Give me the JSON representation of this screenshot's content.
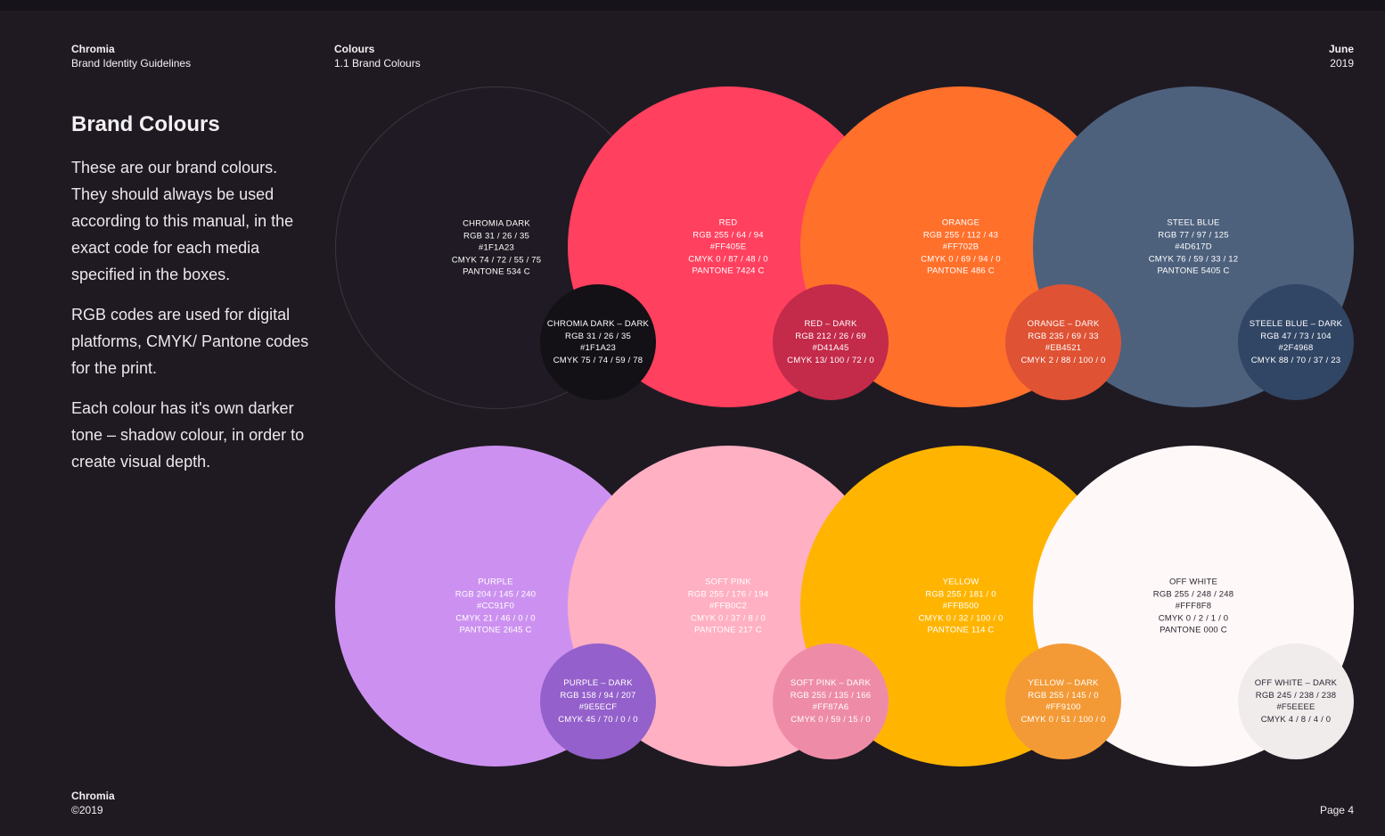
{
  "header": {
    "brand": "Chromia",
    "subtitle": "Brand Identity Guidelines",
    "section": "Colours",
    "subsection": "1.1 Brand Colours",
    "month": "June",
    "year": "2019"
  },
  "title": "Brand Colours",
  "intro": [
    "These are our brand colours. They should always be used according to this manual, in the exact code for each media specified in the boxes.",
    "RGB codes are used for digital platforms, CMYK/ Pantone codes for the print.",
    "Each colour has it's own darker tone – shadow colour, in order to create visual depth."
  ],
  "colors": [
    {
      "name": "Chromia Dark",
      "rgb": "RGB 31 / 26 / 35",
      "hex": "#1F1A23",
      "cmyk": "CMYK 74 / 72 / 55 / 75",
      "pantone": "PANTONE 534 C",
      "text_color": "#ffffff",
      "dark": {
        "name": "Chromia Dark – Dark",
        "rgb": "RGB 31 / 26 / 35",
        "hex": "#1F1A23",
        "cmyk": "CMYK 75 / 74 / 59 / 78",
        "fill": "#131016",
        "text_color": "#ffffff"
      }
    },
    {
      "name": "Red",
      "rgb": "RGB 255 / 64 / 94",
      "hex": "#FF405E",
      "cmyk": "CMYK 0 / 87 / 48 / 0",
      "pantone": "PANTONE 7424 C",
      "text_color": "#ffffff",
      "dark": {
        "name": "Red – Dark",
        "rgb": "RGB 212 / 26 / 69",
        "hex": "#D41A45",
        "cmyk": "CMYK 13/ 100 / 72 / 0",
        "fill": "#c42a49",
        "text_color": "#ffffff"
      }
    },
    {
      "name": "Orange",
      "rgb": "RGB 255 / 112 / 43",
      "hex": "#FF702B",
      "cmyk": "CMYK 0 / 69 / 94 / 0",
      "pantone": "PANTONE 486 C",
      "text_color": "#ffffff",
      "dark": {
        "name": "Orange – Dark",
        "rgb": "RGB 235 / 69 / 33",
        "hex": "#EB4521",
        "cmyk": "CMYK 2 / 88 / 100 / 0",
        "fill": "#df5234",
        "text_color": "#ffffff"
      }
    },
    {
      "name": "Steel Blue",
      "rgb": "RGB 77 / 97 / 125",
      "hex": "#4D617D",
      "cmyk": "CMYK 76 / 59 / 33 / 12",
      "pantone": "PANTONE 5405 C",
      "text_color": "#ffffff",
      "dark": {
        "name": "Steele Blue – Dark",
        "rgb": "RGB 47 / 73 / 104",
        "hex": "#2F4968",
        "cmyk": "CMYK 88 / 70 / 37 / 23",
        "fill": "#314564",
        "text_color": "#ffffff"
      }
    },
    {
      "name": "Purple",
      "rgb": "RGB 204 / 145 / 240",
      "hex": "#CC91F0",
      "cmyk": "CMYK 21 / 46 / 0 / 0",
      "pantone": "PANTONE 2645 C",
      "text_color": "#ffffff",
      "dark": {
        "name": "Purple – Dark",
        "rgb": "RGB 158 / 94 / 207",
        "hex": "#9E5ECF",
        "cmyk": "CMYK 45 / 70 / 0 / 0",
        "fill": "#9460cb",
        "text_color": "#ffffff"
      }
    },
    {
      "name": "Soft Pink",
      "rgb": "RGB 255 / 176 / 194",
      "hex": "#FFB0C2",
      "cmyk": "CMYK 0 / 37 / 8 / 0",
      "pantone": "PANTONE 217 C",
      "text_color": "#ffffff",
      "dark": {
        "name": "Soft Pink – Dark",
        "rgb": "RGB 255 / 135 / 166",
        "hex": "#FF87A6",
        "cmyk": "CMYK 0 / 59 / 15 / 0",
        "fill": "#ee8ca8",
        "text_color": "#ffffff"
      }
    },
    {
      "name": "Yellow",
      "rgb": "RGB 255 / 181 / 0",
      "hex": "#FFB500",
      "cmyk": "CMYK 0 / 32 / 100 / 0",
      "pantone": "PANTONE 114 C",
      "text_color": "#ffffff",
      "dark": {
        "name": "Yellow – Dark",
        "rgb": "RGB 255 / 145 / 0",
        "hex": "#FF9100",
        "cmyk": "CMYK 0 / 51 / 100 / 0",
        "fill": "#f39a36",
        "text_color": "#ffffff"
      }
    },
    {
      "name": "Off White",
      "rgb": "RGB 255 / 248 / 248",
      "hex": "#FFF8F8",
      "cmyk": "CMYK 0 / 2 / 1 / 0",
      "pantone": "PANTONE 000 C",
      "text_color": "#2a2530",
      "dark": {
        "name": "Off White – Dark",
        "rgb": "RGB 245 / 238 / 238",
        "hex": "#F5EEEE",
        "cmyk": "CMYK 4 / 8 / 4 / 0",
        "fill": "#f1ecec",
        "text_color": "#2a2530"
      }
    }
  ],
  "footer": {
    "brand": "Chromia",
    "copyright": "©2019",
    "page": "Page 4"
  }
}
